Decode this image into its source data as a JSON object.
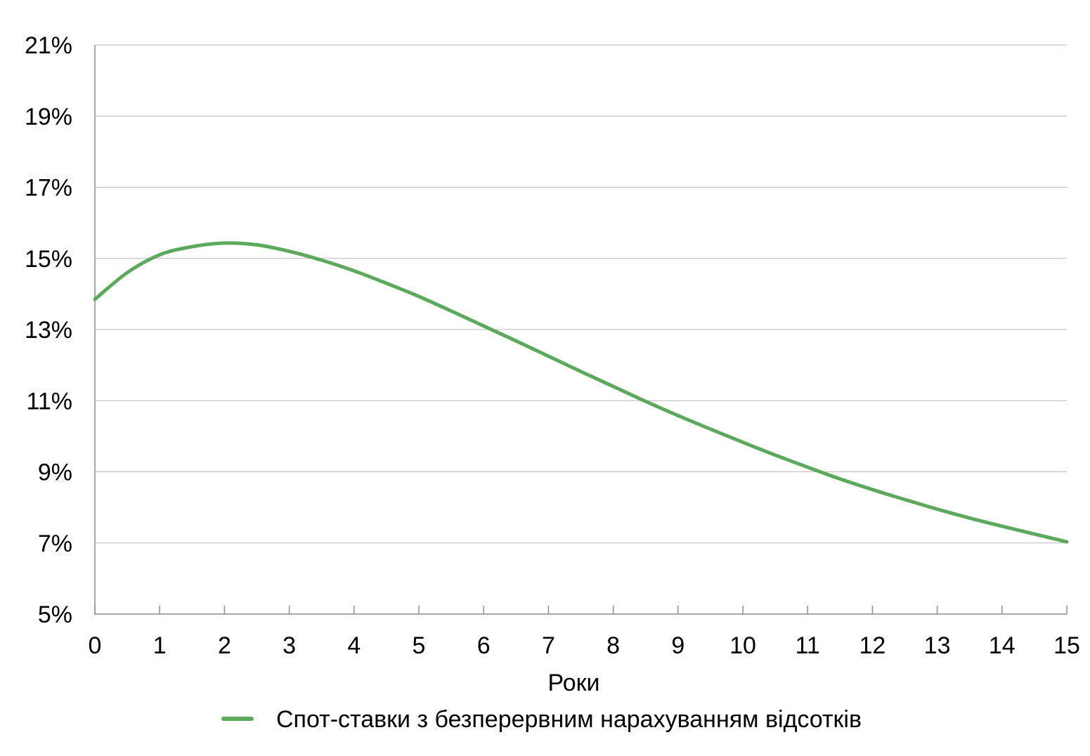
{
  "chart_data": {
    "type": "line",
    "title": "",
    "xlabel": "Роки",
    "ylabel": "",
    "xlim": [
      0,
      15
    ],
    "ylim": [
      5,
      21
    ],
    "x_ticks": [
      0,
      1,
      2,
      3,
      4,
      5,
      6,
      7,
      8,
      9,
      10,
      11,
      12,
      13,
      14,
      15
    ],
    "x_tick_labels": [
      "0",
      "1",
      "2",
      "3",
      "4",
      "5",
      "6",
      "7",
      "8",
      "9",
      "10",
      "11",
      "12",
      "13",
      "14",
      "15"
    ],
    "y_ticks": [
      5,
      7,
      9,
      11,
      13,
      15,
      17,
      19,
      21
    ],
    "y_tick_labels": [
      "5%",
      "7%",
      "9%",
      "11%",
      "13%",
      "15%",
      "17%",
      "19%",
      "21%"
    ],
    "grid": "horizontal",
    "legend_position": "bottom",
    "series": [
      {
        "name": "Спот-ставки з безперервним нарахуванням відсотків",
        "color": "#5BAA5B",
        "x": [
          0,
          0.5,
          1,
          1.5,
          2,
          2.5,
          3,
          3.5,
          4,
          4.5,
          5,
          5.5,
          6,
          6.5,
          7,
          7.5,
          8,
          8.5,
          9,
          9.5,
          10,
          10.5,
          11,
          11.5,
          12,
          12.5,
          13,
          13.5,
          14,
          14.5,
          15
        ],
        "y": [
          13.85,
          14.6,
          15.1,
          15.33,
          15.43,
          15.38,
          15.2,
          14.95,
          14.65,
          14.3,
          13.93,
          13.52,
          13.1,
          12.68,
          12.25,
          11.82,
          11.4,
          10.98,
          10.58,
          10.2,
          9.83,
          9.47,
          9.13,
          8.8,
          8.5,
          8.22,
          7.95,
          7.7,
          7.47,
          7.25,
          7.03
        ]
      }
    ]
  }
}
